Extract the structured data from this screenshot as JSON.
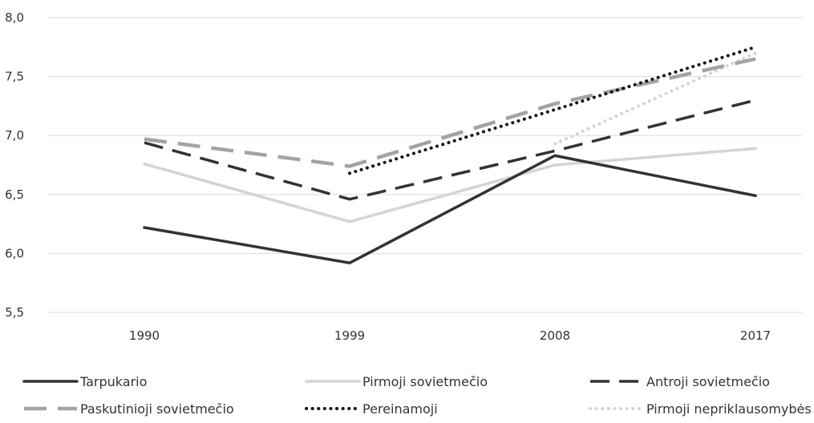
{
  "chart_data": {
    "type": "line",
    "title": "",
    "xlabel": "",
    "ylabel": "",
    "categories": [
      "1990",
      "1999",
      "2008",
      "2017"
    ],
    "ylim": [
      5.5,
      8.0
    ],
    "yticks": [
      "5,5",
      "6,0",
      "6,5",
      "7,0",
      "7,5",
      "8,0"
    ],
    "grid": "horizontal",
    "legend_position": "bottom",
    "series": [
      {
        "name": "Tarpukario",
        "values": [
          6.22,
          5.92,
          6.83,
          6.49
        ],
        "color": "#333333",
        "style": "solid"
      },
      {
        "name": "Pirmoji sovietmečio",
        "values": [
          6.76,
          6.27,
          6.75,
          6.89
        ],
        "color": "#d4d4d4",
        "style": "solid"
      },
      {
        "name": "Antroji sovietmečio",
        "values": [
          6.94,
          6.46,
          6.87,
          7.3
        ],
        "color": "#333333",
        "style": "dash"
      },
      {
        "name": "Paskutinioji sovietmečio",
        "values": [
          6.97,
          6.74,
          7.27,
          7.65
        ],
        "color": "#a3a3a3",
        "style": "longdash"
      },
      {
        "name": "Pereinamoji",
        "values": [
          null,
          6.68,
          7.22,
          7.75
        ],
        "color": "#111111",
        "style": "dot"
      },
      {
        "name": "Pirmoji nepriklausomybės",
        "values": [
          null,
          null,
          6.93,
          7.7
        ],
        "color": "#d4d4d4",
        "style": "dot"
      }
    ]
  }
}
